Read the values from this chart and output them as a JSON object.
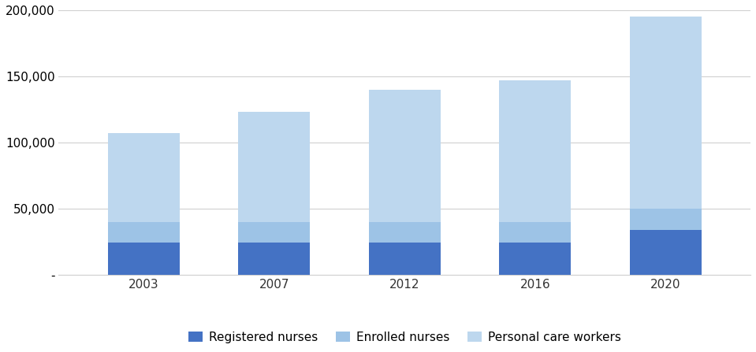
{
  "years": [
    "2003",
    "2007",
    "2012",
    "2016",
    "2020"
  ],
  "registered_nurses": [
    24000,
    24000,
    24000,
    24000,
    34000
  ],
  "enrolled_nurses": [
    16000,
    16000,
    16000,
    16000,
    16000
  ],
  "personal_care_workers": [
    67000,
    83000,
    100000,
    107000,
    145000
  ],
  "color_registered": "#4472C4",
  "color_enrolled": "#9DC3E6",
  "color_personal": "#BDD7EE",
  "legend_labels": [
    "Registered nurses",
    "Enrolled nurses",
    "Personal care workers"
  ],
  "ylim": [
    0,
    200000
  ],
  "yticks": [
    0,
    50000,
    100000,
    150000,
    200000
  ],
  "background_color": "#ffffff",
  "grid_color": "#d0d0d0"
}
